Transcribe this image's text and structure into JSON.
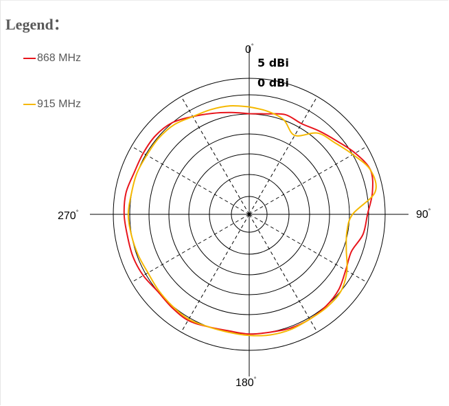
{
  "legend": {
    "title": "Legend：",
    "items": [
      {
        "label": "868 MHz",
        "color": "#e8141b"
      },
      {
        "label": "915 MHz",
        "color": "#f5b800"
      }
    ]
  },
  "ring_labels": [
    "5 dBi",
    "0 dBi"
  ],
  "angle_labels": [
    {
      "text": "0",
      "sup": "°"
    },
    {
      "text": "90",
      "sup": "°"
    },
    {
      "text": "180",
      "sup": "°"
    },
    {
      "text": "270",
      "sup": "°"
    }
  ],
  "chart_data": {
    "type": "polar-line",
    "angle_unit": "degrees",
    "angle_direction": "clockwise from top",
    "angle_ticks": [
      0,
      90,
      180,
      270
    ],
    "ring_labels": [
      "5 dBi",
      "0 dBi"
    ],
    "radial_rings_count": 6,
    "radial_spokes_every_deg": 30,
    "grid": true,
    "legend_position": "top-left",
    "r_units_note": "relative radius, outer ring = 1.0",
    "series": [
      {
        "name": "868 MHz",
        "color": "#e8141b",
        "points": [
          [
            0,
            0.74
          ],
          [
            10,
            0.75
          ],
          [
            20,
            0.78
          ],
          [
            30,
            0.77
          ],
          [
            40,
            0.8
          ],
          [
            50,
            0.84
          ],
          [
            60,
            0.9
          ],
          [
            70,
            0.95
          ],
          [
            80,
            0.92
          ],
          [
            90,
            0.87
          ],
          [
            100,
            0.85
          ],
          [
            110,
            0.8
          ],
          [
            120,
            0.82
          ],
          [
            130,
            0.86
          ],
          [
            140,
            0.88
          ],
          [
            150,
            0.89
          ],
          [
            160,
            0.89
          ],
          [
            170,
            0.88
          ],
          [
            180,
            0.88
          ],
          [
            190,
            0.87
          ],
          [
            200,
            0.88
          ],
          [
            210,
            0.9
          ],
          [
            220,
            0.89
          ],
          [
            230,
            0.88
          ],
          [
            240,
            0.9
          ],
          [
            250,
            0.91
          ],
          [
            260,
            0.91
          ],
          [
            270,
            0.92
          ],
          [
            280,
            0.92
          ],
          [
            290,
            0.9
          ],
          [
            300,
            0.9
          ],
          [
            310,
            0.9
          ],
          [
            320,
            0.88
          ],
          [
            330,
            0.83
          ],
          [
            340,
            0.79
          ],
          [
            350,
            0.76
          ],
          [
            360,
            0.74
          ]
        ]
      },
      {
        "name": "915 MHz",
        "color": "#f5b800",
        "points": [
          [
            0,
            0.79
          ],
          [
            10,
            0.77
          ],
          [
            20,
            0.74
          ],
          [
            30,
            0.67
          ],
          [
            40,
            0.78
          ],
          [
            50,
            0.82
          ],
          [
            60,
            0.88
          ],
          [
            70,
            0.95
          ],
          [
            80,
            0.94
          ],
          [
            90,
            0.76
          ],
          [
            100,
            0.73
          ],
          [
            110,
            0.76
          ],
          [
            120,
            0.83
          ],
          [
            130,
            0.88
          ],
          [
            140,
            0.89
          ],
          [
            150,
            0.89
          ],
          [
            160,
            0.9
          ],
          [
            170,
            0.9
          ],
          [
            180,
            0.89
          ],
          [
            190,
            0.88
          ],
          [
            200,
            0.88
          ],
          [
            210,
            0.89
          ],
          [
            220,
            0.88
          ],
          [
            230,
            0.87
          ],
          [
            240,
            0.86
          ],
          [
            250,
            0.87
          ],
          [
            260,
            0.88
          ],
          [
            270,
            0.89
          ],
          [
            280,
            0.88
          ],
          [
            290,
            0.88
          ],
          [
            300,
            0.87
          ],
          [
            310,
            0.87
          ],
          [
            320,
            0.86
          ],
          [
            330,
            0.83
          ],
          [
            340,
            0.82
          ],
          [
            350,
            0.81
          ],
          [
            360,
            0.79
          ]
        ]
      }
    ]
  }
}
